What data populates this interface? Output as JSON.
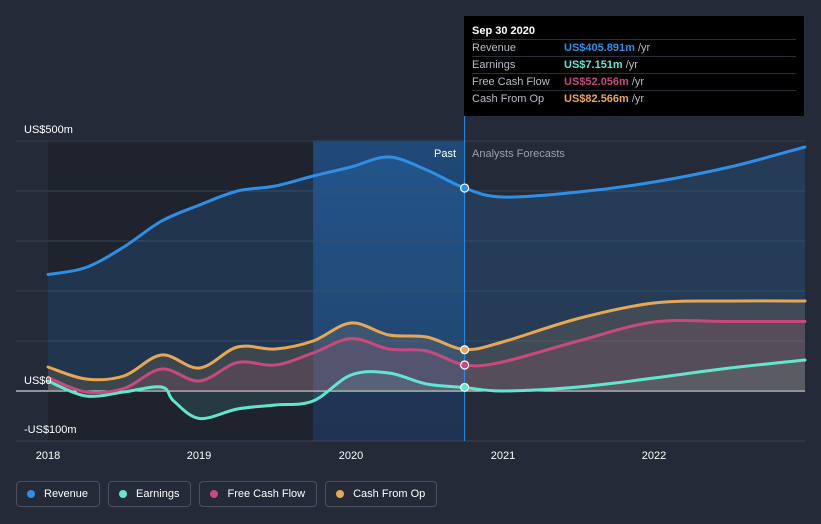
{
  "chart_data": {
    "type": "line",
    "x_unit": "year",
    "xlim": [
      2018,
      2023
    ],
    "ylim": [
      -100,
      500
    ],
    "y_tick_labels": [
      {
        "value": 500,
        "label": "US$500m"
      },
      {
        "value": 0,
        "label": "US$0"
      },
      {
        "value": -100,
        "label": "-US$100m"
      }
    ],
    "x_tick_labels": [
      "2018",
      "2019",
      "2020",
      "2021",
      "2022"
    ],
    "x_ticks": [
      2018,
      2019,
      2020,
      2021,
      2022
    ],
    "gridlines_y": [
      500,
      400,
      300,
      200,
      100,
      0,
      -100
    ],
    "past_label": "Past",
    "forecast_label": "Analysts Forecasts",
    "divider_x": 2020.75,
    "shaded_region": [
      2019.75,
      2020.75
    ],
    "series": [
      {
        "name": "Revenue",
        "color": "#2f8ee5",
        "x": [
          2018.0,
          2018.25,
          2018.5,
          2018.75,
          2019.0,
          2019.25,
          2019.5,
          2019.75,
          2020.0,
          2020.25,
          2020.5,
          2020.75,
          2021.0,
          2021.5,
          2022.0,
          2022.5,
          2023.0
        ],
        "values": [
          233,
          247,
          288,
          340,
          372,
          400,
          410,
          430,
          448,
          468,
          442,
          406,
          388,
          398,
          418,
          448,
          488
        ]
      },
      {
        "name": "Earnings",
        "color": "#62e6cf",
        "x": [
          2018.0,
          2018.25,
          2018.5,
          2018.75,
          2018.83,
          2019.0,
          2019.25,
          2019.5,
          2019.75,
          2020.0,
          2020.25,
          2020.5,
          2020.75,
          2021.0,
          2021.5,
          2022.0,
          2022.5,
          2023.0
        ],
        "values": [
          20,
          -10,
          -2,
          8,
          -20,
          -55,
          -36,
          -28,
          -20,
          32,
          36,
          14,
          7,
          0,
          8,
          26,
          46,
          62
        ]
      },
      {
        "name": "Free Cash Flow",
        "color": "#c7497e",
        "x": [
          2018.0,
          2018.25,
          2018.5,
          2018.75,
          2019.0,
          2019.25,
          2019.5,
          2019.75,
          2020.0,
          2020.25,
          2020.5,
          2020.75,
          2021.0,
          2021.5,
          2022.0,
          2022.5,
          2023.0
        ],
        "values": [
          27,
          -2,
          5,
          44,
          20,
          57,
          52,
          76,
          105,
          84,
          80,
          52,
          58,
          100,
          138,
          139,
          139
        ]
      },
      {
        "name": "Cash From Op",
        "color": "#e6a857",
        "x": [
          2018.0,
          2018.25,
          2018.5,
          2018.75,
          2019.0,
          2019.25,
          2019.5,
          2019.75,
          2020.0,
          2020.25,
          2020.5,
          2020.75,
          2021.0,
          2021.5,
          2022.0,
          2022.5,
          2023.0
        ],
        "values": [
          48,
          24,
          30,
          72,
          46,
          88,
          84,
          100,
          136,
          112,
          108,
          83,
          98,
          145,
          176,
          180,
          180
        ]
      }
    ],
    "highlight": {
      "x": 2020.75,
      "revenue": 405.891,
      "earnings": 7.151,
      "fcf": 52.056,
      "cfo": 82.566
    }
  },
  "tooltip": {
    "date": "Sep 30 2020",
    "rows": [
      {
        "name": "Revenue",
        "value": "US$405.891m",
        "unit": "/yr",
        "color": "#2f8ee5"
      },
      {
        "name": "Earnings",
        "value": "US$7.151m",
        "unit": "/yr",
        "color": "#62e6cf"
      },
      {
        "name": "Free Cash Flow",
        "value": "US$52.056m",
        "unit": "/yr",
        "color": "#c7497e"
      },
      {
        "name": "Cash From Op",
        "value": "US$82.566m",
        "unit": "/yr",
        "color": "#e6a857"
      }
    ]
  },
  "legend": [
    {
      "label": "Revenue",
      "color": "#2f8ee5"
    },
    {
      "label": "Earnings",
      "color": "#62e6cf"
    },
    {
      "label": "Free Cash Flow",
      "color": "#c7497e"
    },
    {
      "label": "Cash From Op",
      "color": "#e6a857"
    }
  ]
}
